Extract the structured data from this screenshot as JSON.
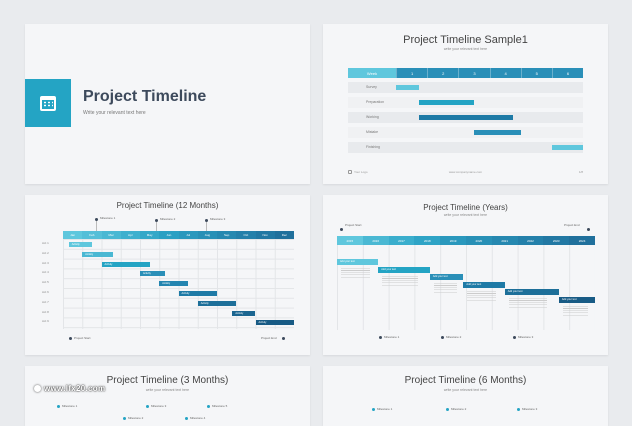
{
  "slides": {
    "s1": {
      "title": "Project Timeline",
      "subtitle": "Write your relevant text here",
      "icon": "calendar-icon",
      "accent": "#24a4c4"
    },
    "s2": {
      "title": "Project Timeline Sample1",
      "subtitle": "write your relevant text here",
      "header_first": "Week",
      "columns": [
        "1",
        "2",
        "3",
        "4",
        "5",
        "6"
      ],
      "rows": [
        {
          "label": "Survey",
          "start": 0.0,
          "end": 0.75,
          "color": "#5fc7dd"
        },
        {
          "label": "Preparation",
          "start": 0.75,
          "end": 2.5,
          "color": "#24a4c4"
        },
        {
          "label": "Working",
          "start": 0.75,
          "end": 3.75,
          "color": "#1e7aa6"
        },
        {
          "label": "Mistake",
          "start": 2.5,
          "end": 4.0,
          "color": "#2a8fb8"
        },
        {
          "label": "Finishing",
          "start": 5.0,
          "end": 6.0,
          "color": "#5fc7dd"
        }
      ],
      "footer_left": "Your Logo",
      "footer_center": "www.companyname.com",
      "footer_right": "1/8"
    },
    "s3": {
      "title": "Project Timeline (12 Months)",
      "months": [
        "Jan",
        "Feb",
        "Mar",
        "Apr",
        "May",
        "Jun",
        "Jul",
        "Aug",
        "Sep",
        "Oct",
        "Nov",
        "Dec"
      ],
      "rows": [
        "Act 1",
        "Act 2",
        "Act 3",
        "Act 4",
        "Act 5",
        "Act 6",
        "Act 7",
        "Act 8",
        "Act 9"
      ],
      "bars": [
        {
          "label": "Activity",
          "start": 0.3,
          "end": 1.5,
          "color": "#5fc7dd"
        },
        {
          "label": "Activity",
          "start": 1.0,
          "end": 2.6,
          "color": "#4ab8d3"
        },
        {
          "label": "Activity",
          "start": 2.0,
          "end": 4.5,
          "color": "#24a4c4"
        },
        {
          "label": "Activity",
          "start": 4.0,
          "end": 5.3,
          "color": "#2a8fb8"
        },
        {
          "label": "Activity",
          "start": 5.0,
          "end": 6.5,
          "color": "#2485b0"
        },
        {
          "label": "Activity",
          "start": 6.0,
          "end": 8.0,
          "color": "#1e7aa6"
        },
        {
          "label": "Activity",
          "start": 7.0,
          "end": 9.0,
          "color": "#1d6f99"
        },
        {
          "label": "Activity",
          "start": 8.8,
          "end": 10.0,
          "color": "#1a6590"
        },
        {
          "label": "Activity",
          "start": 10.0,
          "end": 12.0,
          "color": "#185b85"
        }
      ],
      "milestones_top": [
        "Milestone 1",
        "Milestone 2",
        "Milestone 3"
      ],
      "project_start": "Project Start",
      "project_end": "Project End"
    },
    "s4": {
      "title": "Project Timeline (Years)",
      "subtitle": "write your relevant text here",
      "years": [
        "2015",
        "2016",
        "2017",
        "2018",
        "2019",
        "2020",
        "2021",
        "2022",
        "2023",
        "2024"
      ],
      "project_start": "Project Start",
      "project_end": "Project End",
      "bars": [
        {
          "label": "Add your text",
          "start": 0.0,
          "end": 1.6,
          "color": "#5fc7dd"
        },
        {
          "label": "Add your text",
          "start": 1.6,
          "end": 3.6,
          "color": "#24a4c4"
        },
        {
          "label": "Add your text",
          "start": 3.6,
          "end": 4.9,
          "color": "#2a8fb8"
        },
        {
          "label": "Add your text",
          "start": 4.9,
          "end": 6.5,
          "color": "#1e7aa6"
        },
        {
          "label": "Add your text",
          "start": 6.5,
          "end": 8.6,
          "color": "#1d6f99"
        },
        {
          "label": "Add your text",
          "start": 8.6,
          "end": 10.0,
          "color": "#185b85"
        }
      ],
      "milestones_bottom": [
        "Milestone 1",
        "Milestone 2",
        "Milestone 3"
      ]
    },
    "s5": {
      "title": "Project Timeline (3 Months)",
      "subtitle": "write your relevant text here",
      "milestones": [
        "Milestone 1",
        "Milestone 3",
        "Milestone 5",
        "Milestone 2",
        "Milestone 4"
      ]
    },
    "s6": {
      "title": "Project Timeline (6 Months)",
      "subtitle": "write your relevant text here",
      "milestones": [
        "Milestone 1",
        "Milestone 2",
        "Milestone 3"
      ]
    }
  },
  "watermark": "www.lfx20.com"
}
